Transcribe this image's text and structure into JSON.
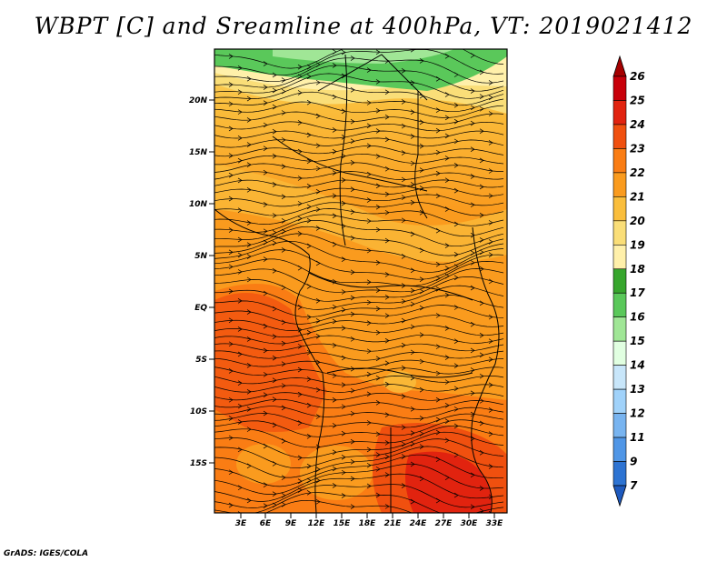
{
  "title": "WBPT [C] and Sreamline at 400hPa, VT: 2019021412",
  "footer": "GrADS: IGES/COLA",
  "map": {
    "lat_labels": [
      "20N",
      "15N",
      "10N",
      "5N",
      "EQ",
      "5S",
      "10S",
      "15S"
    ],
    "lon_labels": [
      "3E",
      "6E",
      "9E",
      "12E",
      "15E",
      "18E",
      "21E",
      "24E",
      "27E",
      "30E",
      "33E"
    ],
    "fields": [
      "wet-bulb potential temperature (shaded)",
      "streamlines (arrows)"
    ]
  },
  "colorbar": {
    "levels": [
      "26",
      "25",
      "24",
      "23",
      "22",
      "21",
      "20",
      "19",
      "18",
      "17",
      "16",
      "15",
      "14",
      "13",
      "12",
      "11",
      "9",
      "7"
    ],
    "colors": [
      "#a50000",
      "#c8000a",
      "#e1230f",
      "#f0500f",
      "#fa7d14",
      "#fa9b1e",
      "#fabe3c",
      "#fade78",
      "#fff0aa",
      "#37a62d",
      "#5ac85a",
      "#a0e696",
      "#e1ffe1",
      "#c8e6fa",
      "#a0d2fa",
      "#78b4f0",
      "#5096e6",
      "#2d73d2",
      "#1e5abe"
    ]
  }
}
